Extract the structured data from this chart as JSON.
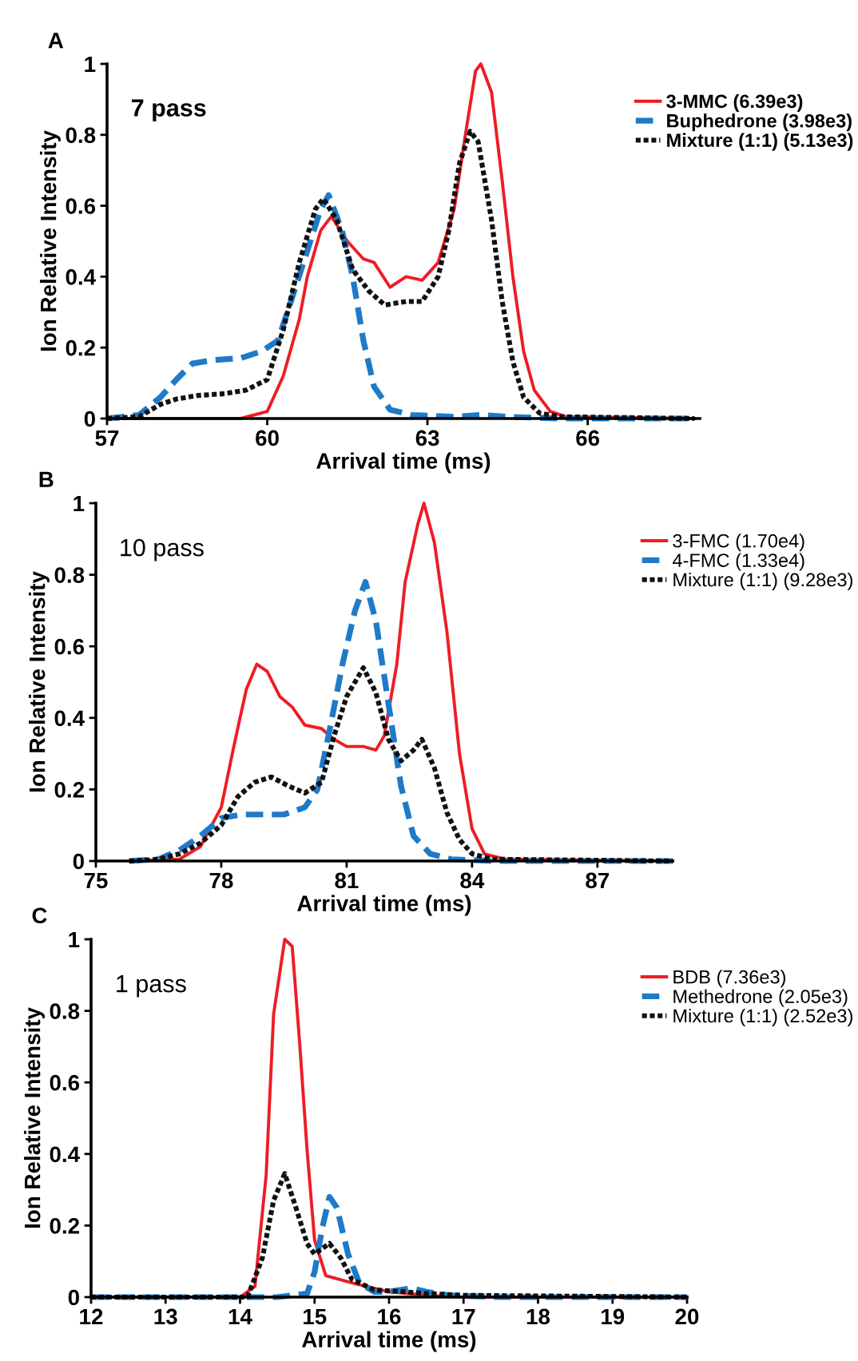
{
  "chart_data": [
    {
      "type": "line",
      "annotations": [
        "A",
        "7 pass"
      ],
      "xlabel": "Arrival time (ms)",
      "ylabel": "Ion Relative Intensity",
      "xlim": [
        57,
        68.1
      ],
      "xticks": [
        57,
        60,
        63,
        66
      ],
      "ylim": [
        0,
        1
      ],
      "yticks": [
        0,
        0.2,
        0.4,
        0.6,
        0.8,
        1
      ],
      "legend": "top right",
      "grid": false,
      "series": [
        {
          "name": "3-MMC (6.39e3)",
          "color": "#ee1c25",
          "line_style": "solid",
          "x": [
            57,
            59.5,
            60,
            60.3,
            60.6,
            60.75,
            61.0,
            61.2,
            61.5,
            61.8,
            62.0,
            62.3,
            62.6,
            62.9,
            63.2,
            63.5,
            63.7,
            63.9,
            64.0,
            64.2,
            64.4,
            64.6,
            64.8,
            65.0,
            65.3,
            65.6,
            68
          ],
          "values": [
            0,
            0,
            0.02,
            0.12,
            0.28,
            0.4,
            0.53,
            0.57,
            0.5,
            0.45,
            0.44,
            0.37,
            0.4,
            0.39,
            0.44,
            0.59,
            0.79,
            0.98,
            1.0,
            0.92,
            0.67,
            0.4,
            0.19,
            0.08,
            0.02,
            0.005,
            0
          ]
        },
        {
          "name": "Buphedrone (3.98e3)",
          "color": "#1f7ac8",
          "line_style": "dashed",
          "x": [
            57,
            57.6,
            58.0,
            58.3,
            58.6,
            59.0,
            59.5,
            59.9,
            60.2,
            60.4,
            60.7,
            61.0,
            61.15,
            61.4,
            61.6,
            61.8,
            62.0,
            62.3,
            62.7,
            63.5,
            64.0,
            64.5,
            65.5,
            68
          ],
          "values": [
            0,
            0.01,
            0.06,
            0.11,
            0.155,
            0.165,
            0.17,
            0.19,
            0.22,
            0.31,
            0.45,
            0.59,
            0.63,
            0.53,
            0.4,
            0.22,
            0.09,
            0.025,
            0.01,
            0.005,
            0.01,
            0.005,
            0,
            0
          ]
        },
        {
          "name": "Mixture (1:1) (5.13e3)",
          "color": "#111111",
          "line_style": "dotted",
          "x": [
            57,
            57.6,
            58.0,
            58.3,
            58.7,
            59.2,
            59.6,
            60.0,
            60.3,
            60.6,
            60.9,
            61.05,
            61.3,
            61.6,
            61.9,
            62.2,
            62.6,
            62.9,
            63.2,
            63.4,
            63.6,
            63.8,
            63.95,
            64.2,
            64.4,
            64.6,
            64.8,
            65.1,
            65.5,
            68
          ],
          "values": [
            0,
            0.005,
            0.04,
            0.055,
            0.065,
            0.07,
            0.08,
            0.11,
            0.25,
            0.44,
            0.59,
            0.62,
            0.56,
            0.42,
            0.36,
            0.32,
            0.33,
            0.33,
            0.4,
            0.53,
            0.72,
            0.81,
            0.78,
            0.56,
            0.33,
            0.16,
            0.06,
            0.015,
            0.005,
            0
          ]
        }
      ]
    },
    {
      "type": "line",
      "annotations": [
        "B",
        "10 pass"
      ],
      "xlabel": "Arrival time (ms)",
      "ylabel": "Ion Relative Intensity",
      "xlim": [
        75,
        88.8
      ],
      "xticks": [
        75,
        78,
        81,
        84,
        87
      ],
      "ylim": [
        0,
        1
      ],
      "yticks": [
        0,
        0.2,
        0.4,
        0.6,
        0.8,
        1
      ],
      "legend": "top right",
      "grid": false,
      "series": [
        {
          "name": "3-FMC (1.70e4)",
          "color": "#ee1c25",
          "line_style": "solid",
          "x": [
            75.8,
            77.0,
            77.5,
            78.0,
            78.3,
            78.6,
            78.85,
            79.1,
            79.4,
            79.7,
            80.0,
            80.4,
            80.7,
            81.0,
            81.4,
            81.7,
            81.9,
            82.2,
            82.4,
            82.7,
            82.85,
            83.1,
            83.4,
            83.7,
            84.0,
            84.3,
            84.8,
            88.8
          ],
          "values": [
            0,
            0.005,
            0.04,
            0.15,
            0.32,
            0.48,
            0.55,
            0.53,
            0.46,
            0.43,
            0.38,
            0.37,
            0.34,
            0.32,
            0.32,
            0.31,
            0.35,
            0.55,
            0.78,
            0.94,
            1.0,
            0.89,
            0.64,
            0.3,
            0.09,
            0.02,
            0.005,
            0
          ]
        },
        {
          "name": "4-FMC (1.33e4)",
          "color": "#1f7ac8",
          "line_style": "dashed",
          "x": [
            75.8,
            76.5,
            77.0,
            77.5,
            78.0,
            78.5,
            79.0,
            79.5,
            80.0,
            80.3,
            80.6,
            80.9,
            81.2,
            81.45,
            81.7,
            82.0,
            82.3,
            82.6,
            83.0,
            83.5,
            84.5,
            88.8
          ],
          "values": [
            0,
            0.005,
            0.03,
            0.07,
            0.12,
            0.13,
            0.13,
            0.13,
            0.15,
            0.2,
            0.37,
            0.55,
            0.7,
            0.78,
            0.67,
            0.44,
            0.21,
            0.07,
            0.02,
            0.005,
            0,
            0
          ]
        },
        {
          "name": "Mixture (1:1) (9.28e3)",
          "color": "#111111",
          "line_style": "dotted",
          "x": [
            75.8,
            76.5,
            77.0,
            77.5,
            78.0,
            78.4,
            78.8,
            79.2,
            79.6,
            80.0,
            80.4,
            80.7,
            81.0,
            81.4,
            81.7,
            82.0,
            82.3,
            82.6,
            82.8,
            83.1,
            83.4,
            83.7,
            84.0,
            84.5,
            88.8
          ],
          "values": [
            0,
            0.005,
            0.02,
            0.05,
            0.1,
            0.18,
            0.22,
            0.235,
            0.21,
            0.19,
            0.22,
            0.35,
            0.46,
            0.54,
            0.47,
            0.34,
            0.28,
            0.31,
            0.34,
            0.26,
            0.135,
            0.06,
            0.02,
            0.005,
            0
          ]
        }
      ]
    },
    {
      "type": "line",
      "annotations": [
        "C",
        "1 pass"
      ],
      "xlabel": "Arrival time (ms)",
      "ylabel": "Ion Relative Intensity",
      "xlim": [
        12,
        20
      ],
      "xticks": [
        12,
        13,
        14,
        15,
        16,
        17,
        18,
        19,
        20
      ],
      "ylim": [
        0,
        1
      ],
      "yticks": [
        0,
        0.2,
        0.4,
        0.6,
        0.8,
        1
      ],
      "legend": "top right",
      "grid": false,
      "series": [
        {
          "name": "BDB (7.36e3)",
          "color": "#ee1c25",
          "line_style": "solid",
          "x": [
            12,
            14.0,
            14.2,
            14.35,
            14.45,
            14.6,
            14.7,
            14.8,
            14.9,
            15.0,
            15.15,
            15.5,
            16.0,
            16.5,
            17,
            20
          ],
          "values": [
            0,
            0,
            0.03,
            0.34,
            0.79,
            1.0,
            0.98,
            0.71,
            0.41,
            0.16,
            0.06,
            0.04,
            0.015,
            0.005,
            0,
            0
          ]
        },
        {
          "name": "Methedrone (2.05e3)",
          "color": "#1f7ac8",
          "line_style": "dashed",
          "x": [
            12,
            14.5,
            14.9,
            15.0,
            15.1,
            15.2,
            15.3,
            15.45,
            15.6,
            15.8,
            16.0,
            16.3,
            16.5,
            16.8,
            17.5,
            20
          ],
          "values": [
            0,
            0,
            0.01,
            0.07,
            0.19,
            0.28,
            0.25,
            0.12,
            0.04,
            0.015,
            0.015,
            0.025,
            0.015,
            0.005,
            0,
            0
          ]
        },
        {
          "name": "Mixture (1:1) (2.52e3)",
          "color": "#111111",
          "line_style": "dotted",
          "x": [
            12,
            14.1,
            14.3,
            14.45,
            14.6,
            14.75,
            14.9,
            15.0,
            15.2,
            15.35,
            15.5,
            15.8,
            16.2,
            16.5,
            17,
            20
          ],
          "values": [
            0,
            0,
            0.11,
            0.27,
            0.345,
            0.25,
            0.15,
            0.12,
            0.15,
            0.11,
            0.05,
            0.02,
            0.015,
            0.01,
            0.005,
            0
          ]
        }
      ]
    }
  ]
}
